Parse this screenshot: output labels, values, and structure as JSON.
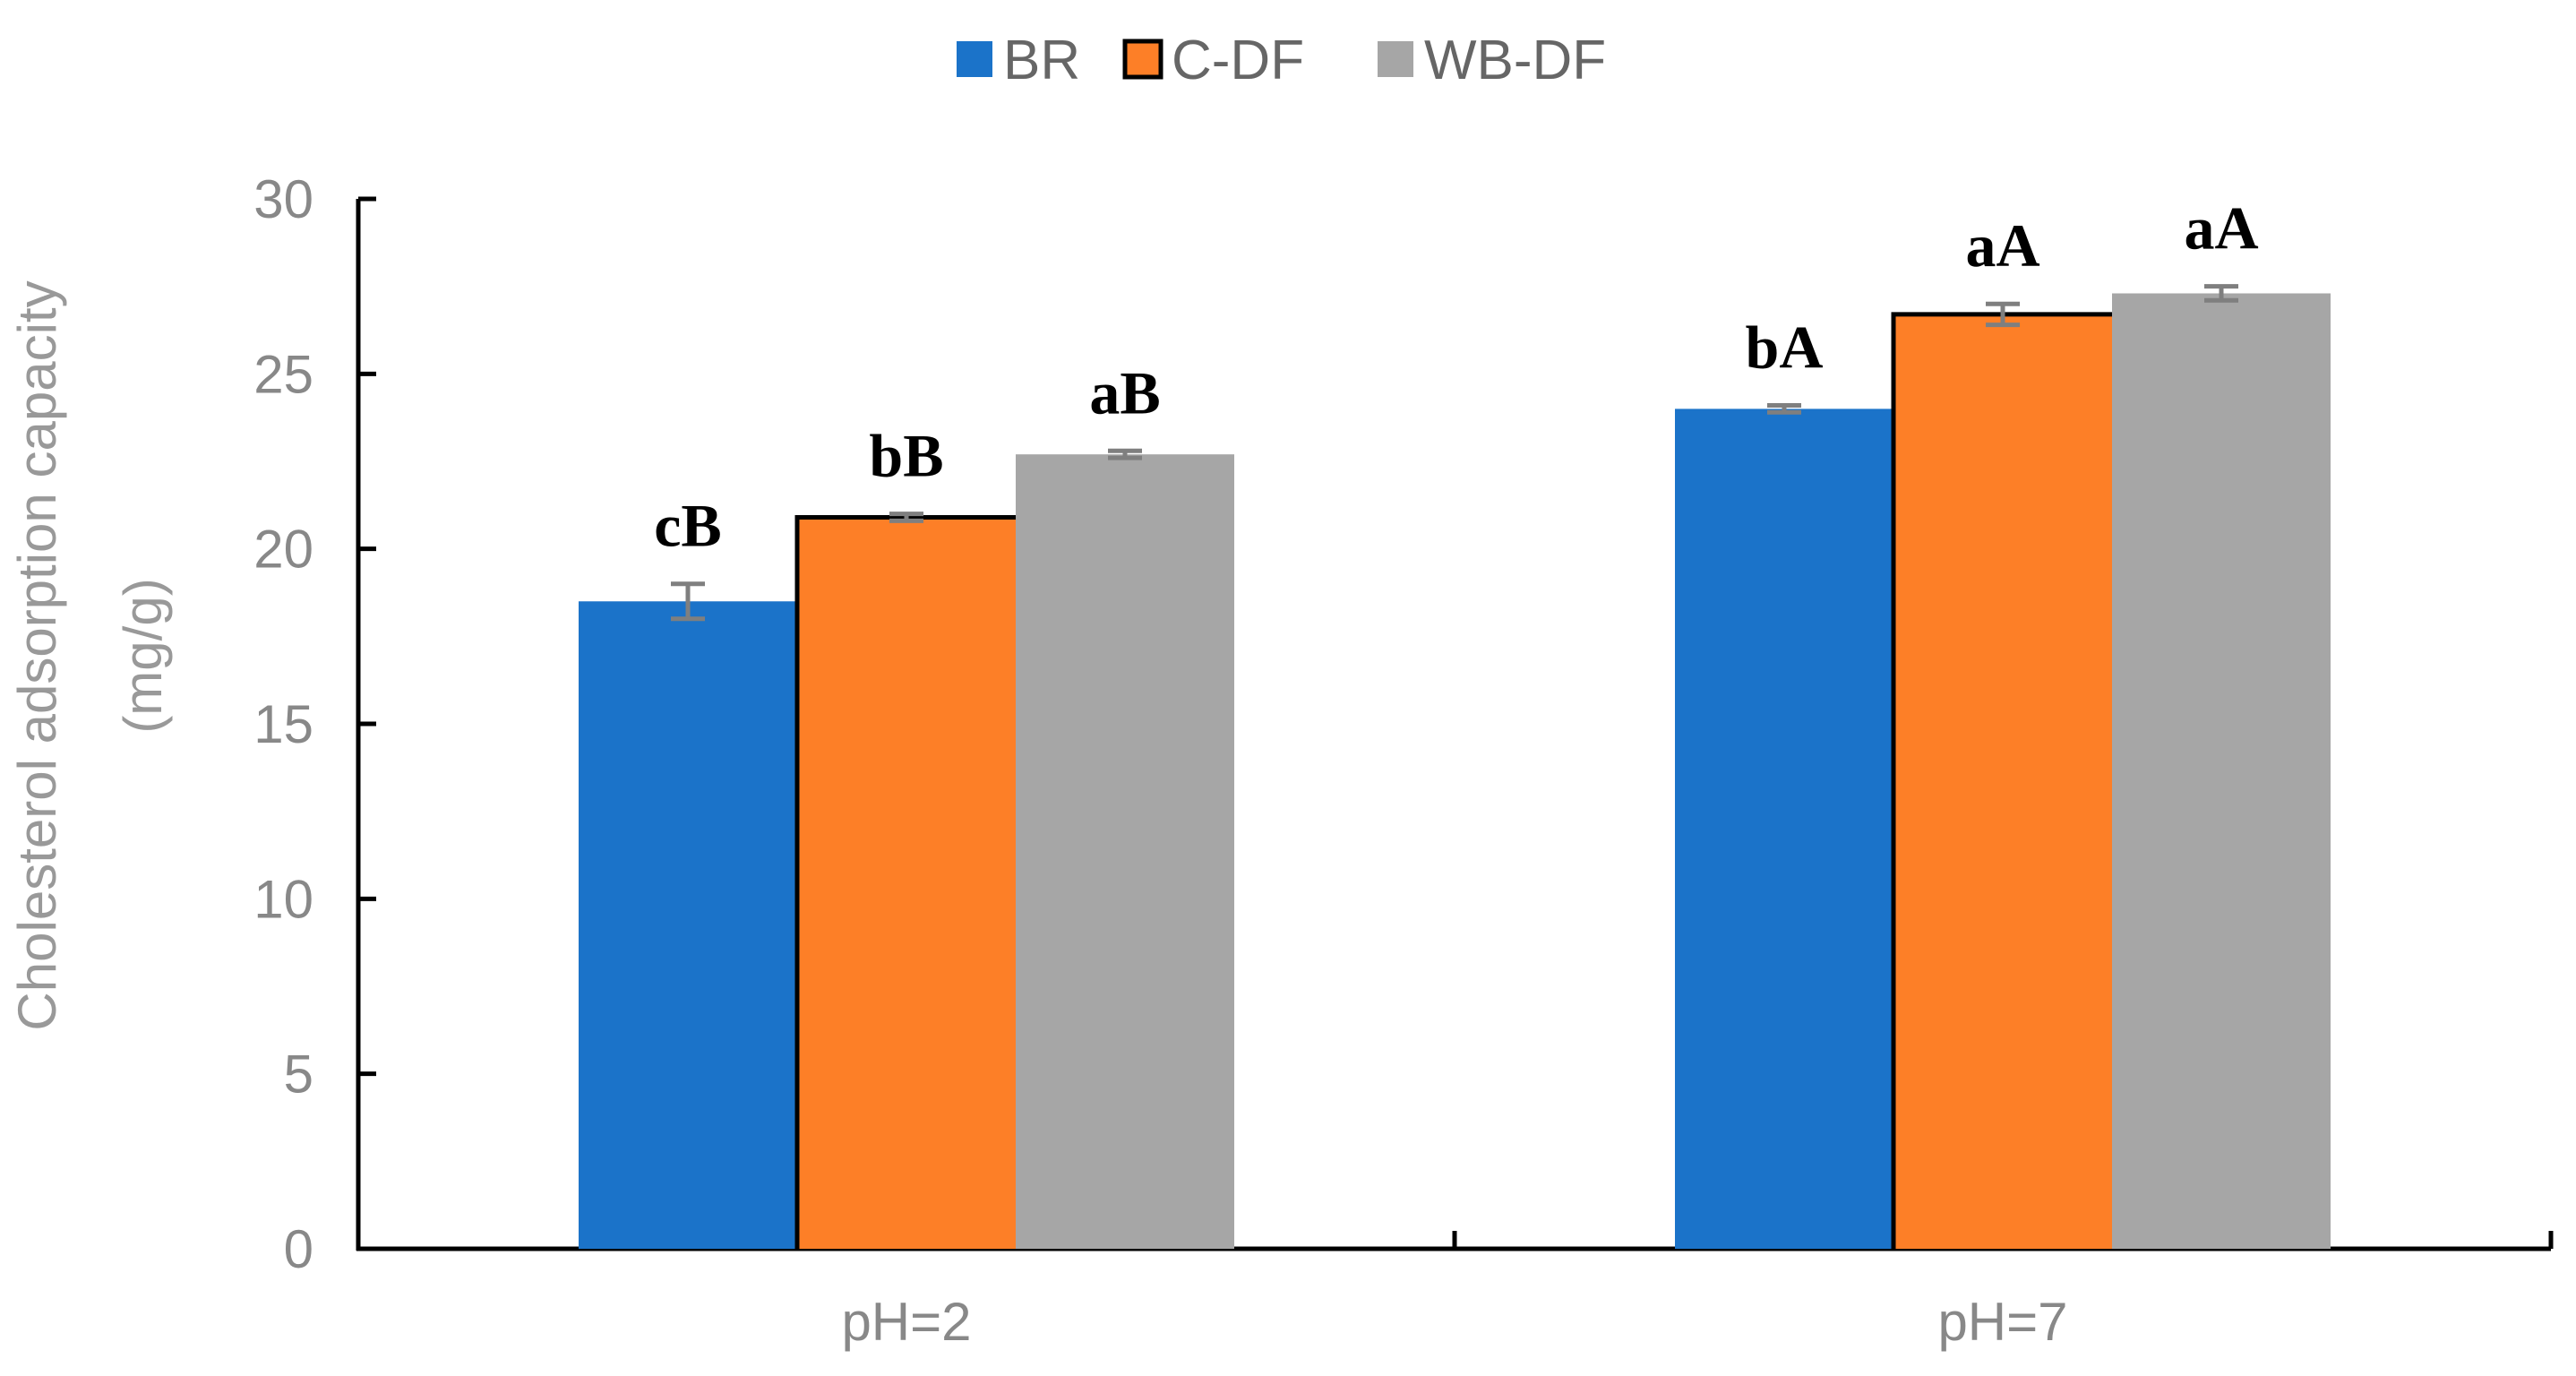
{
  "chart_data": {
    "type": "bar",
    "categories": [
      "pH=2",
      "pH=7"
    ],
    "series": [
      {
        "name": "BR",
        "color": "#1b73c9",
        "values": [
          18.5,
          24.0
        ],
        "errors": [
          0.5,
          0.1
        ],
        "labels": [
          "cB",
          "bA"
        ]
      },
      {
        "name": "C-DF",
        "color": "#fd7f27",
        "values": [
          20.9,
          26.7
        ],
        "errors": [
          0.1,
          0.3
        ],
        "labels": [
          "bB",
          "aA"
        ]
      },
      {
        "name": "WB-DF",
        "color": "#a6a6a6",
        "values": [
          22.7,
          27.3
        ],
        "errors": [
          0.1,
          0.2
        ],
        "labels": [
          "aB",
          "aA"
        ]
      }
    ],
    "ylim": [
      0,
      30
    ],
    "yticks": [
      0,
      5,
      10,
      15,
      20,
      25,
      30
    ],
    "ylabel_line1": "Cholesterol adsorption capacity",
    "ylabel_line2": "(mg/g)",
    "xlabel": "",
    "legend_position": "top-center",
    "grid": false
  }
}
